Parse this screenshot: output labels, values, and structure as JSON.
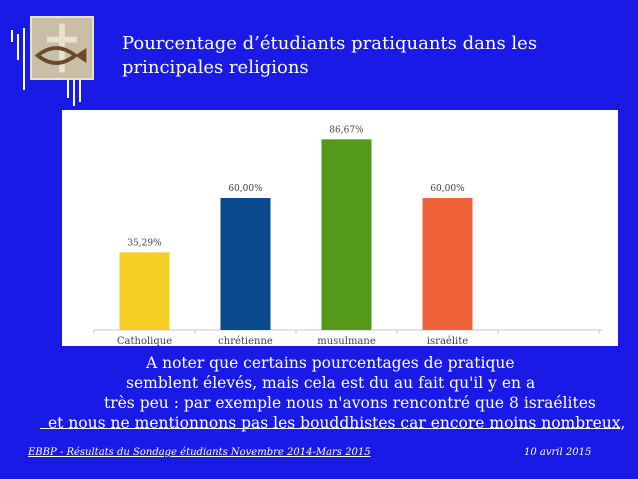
{
  "slide": {
    "title_line1": "Pourcentage d’étudiants pratiquants dans les",
    "title_line2": "principales religions",
    "note_lines": [
      "A noter que certains pourcentages de pratique",
      "semblent élevés, mais cela est du au fait qu'il y en a",
      "très peu : par exemple nous n'avons rencontré que 8 israélites",
      "et nous ne mentionnons pas les bouddhistes car encore moins nombreux,"
    ],
    "footer_left": "EBBP - Résultats du Sondage étudiants Novembre 2014-Mars 2015",
    "footer_right": "10 avril 2015"
  },
  "colors": {
    "background": "#1a1ae6",
    "bars": [
      "#f5cf24",
      "#0a4a8c",
      "#55991a",
      "#f0623a"
    ]
  },
  "icons": [
    "fish-cross-logo-icon"
  ],
  "chart_data": {
    "type": "bar",
    "categories": [
      "Catholique",
      "chrétienne",
      "musulmane",
      "israélite"
    ],
    "values": [
      35.29,
      60.0,
      86.67,
      60.0
    ],
    "data_labels": [
      "35,29%",
      "60,00%",
      "86,67%",
      "60,00%"
    ],
    "title": "",
    "xlabel": "",
    "ylabel": "",
    "ylim": [
      0,
      100
    ],
    "grid": false,
    "legend": "none"
  }
}
